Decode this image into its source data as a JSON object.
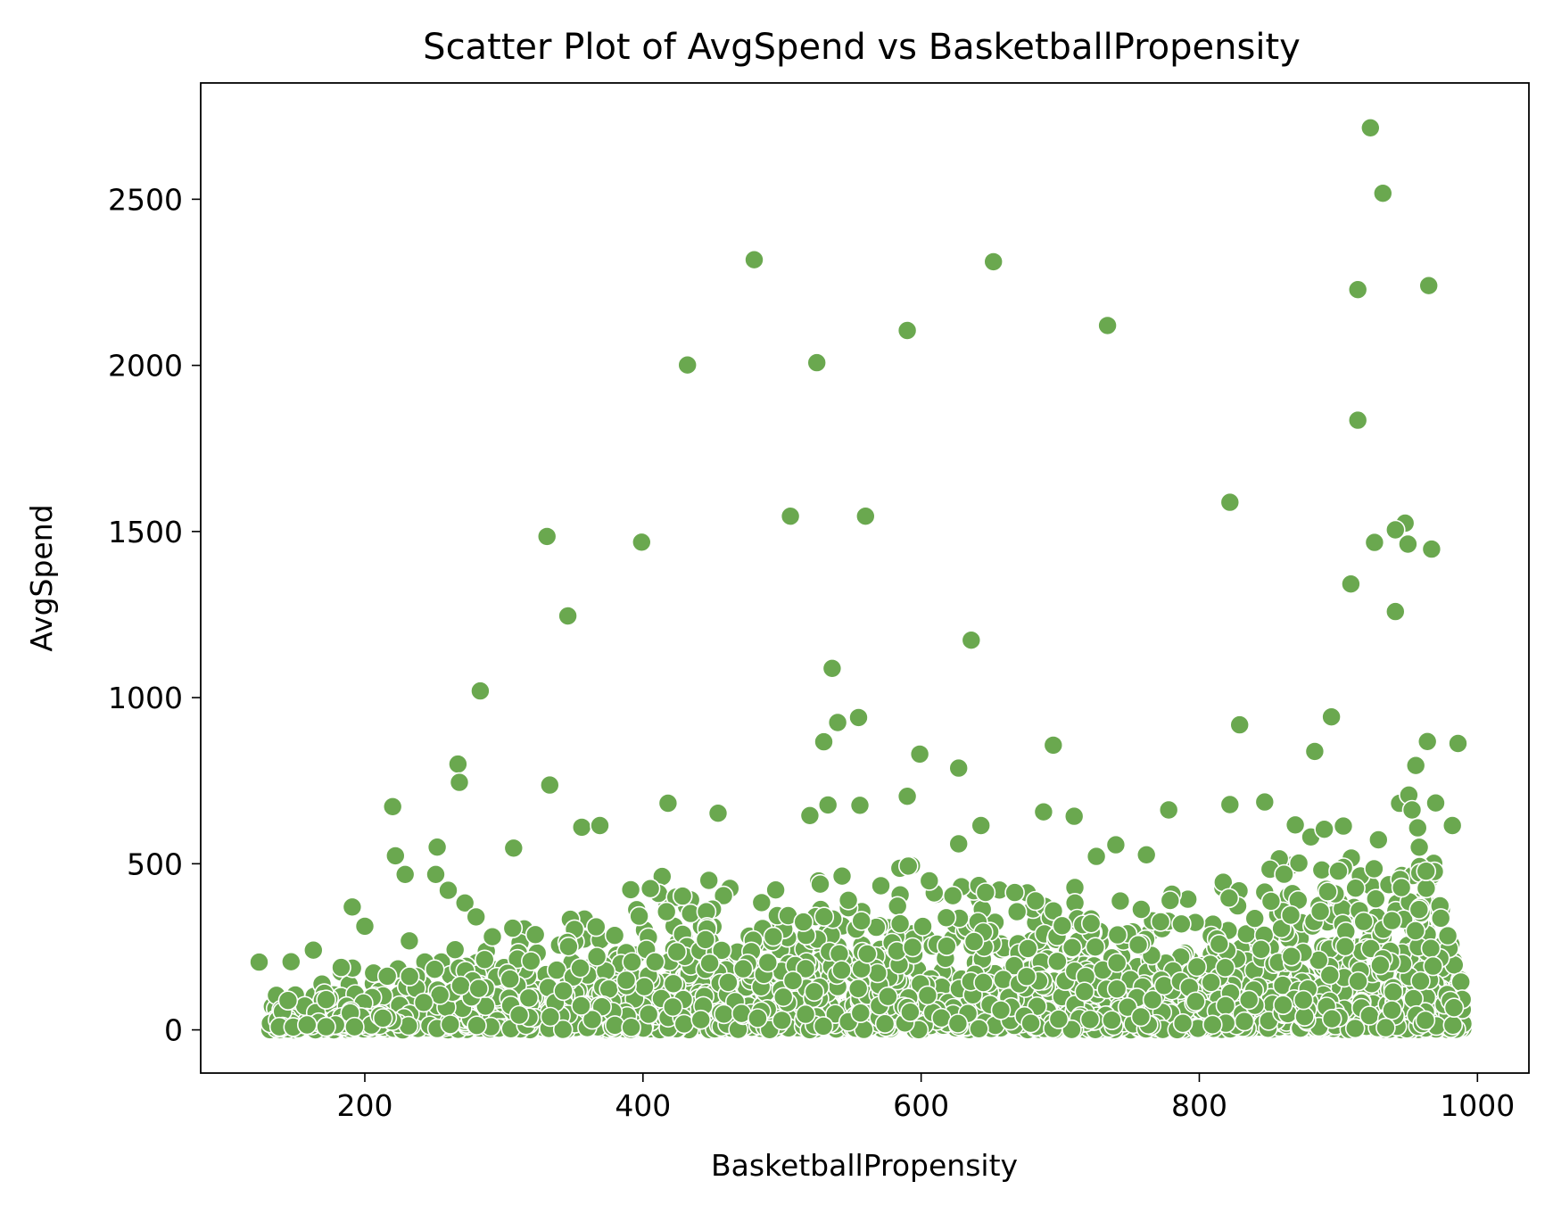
{
  "chart_data": {
    "type": "scatter",
    "title": "Scatter Plot of AvgSpend vs BasketballPropensity",
    "xlabel": "BasketballPropensity",
    "ylabel": "AvgSpend",
    "xlim": [
      82,
      1037
    ],
    "ylim": [
      -130,
      2850
    ],
    "x_ticks": [
      200,
      400,
      600,
      800,
      1000
    ],
    "y_ticks": [
      0,
      500,
      1000,
      1500,
      2000,
      2500
    ],
    "grid": false,
    "legend": "none",
    "point_color": "#6aa84f",
    "point_edge_color": "#ffffff",
    "outliers": [
      [
        923,
        2715
      ],
      [
        932,
        2518
      ],
      [
        480,
        2318
      ],
      [
        652,
        2312
      ],
      [
        965,
        2240
      ],
      [
        914,
        2228
      ],
      [
        734,
        2120
      ],
      [
        590,
        2105
      ],
      [
        432,
        2001
      ],
      [
        525,
        2008
      ],
      [
        914,
        1835
      ],
      [
        822,
        1588
      ],
      [
        506,
        1546
      ],
      [
        560,
        1546
      ],
      [
        948,
        1525
      ],
      [
        941,
        1505
      ],
      [
        926,
        1467
      ],
      [
        331,
        1485
      ],
      [
        399,
        1468
      ],
      [
        950,
        1462
      ],
      [
        967,
        1447
      ],
      [
        909,
        1342
      ],
      [
        346,
        1246
      ],
      [
        941,
        1259
      ],
      [
        636,
        1173
      ],
      [
        536,
        1088
      ],
      [
        283,
        1020
      ],
      [
        555,
        940
      ],
      [
        895,
        942
      ],
      [
        540,
        925
      ],
      [
        829,
        918
      ],
      [
        530,
        867
      ],
      [
        986,
        862
      ],
      [
        964,
        868
      ],
      [
        695,
        857
      ],
      [
        599,
        830
      ],
      [
        883,
        838
      ],
      [
        267,
        800
      ],
      [
        627,
        788
      ],
      [
        268,
        745
      ],
      [
        333,
        737
      ],
      [
        590,
        703
      ],
      [
        220,
        672
      ],
      [
        418,
        682
      ],
      [
        533,
        677
      ],
      [
        556,
        676
      ],
      [
        778,
        662
      ],
      [
        970,
        683
      ],
      [
        847,
        686
      ],
      [
        822,
        678
      ],
      [
        454,
        652
      ],
      [
        520,
        645
      ],
      [
        710,
        643
      ],
      [
        688,
        656
      ],
      [
        356,
        610
      ],
      [
        369,
        615
      ],
      [
        643,
        615
      ],
      [
        982,
        615
      ],
      [
        869,
        617
      ],
      [
        957,
        608
      ],
      [
        252,
        550
      ],
      [
        307,
        547
      ],
      [
        222,
        524
      ],
      [
        627,
        560
      ],
      [
        740,
        557
      ],
      [
        762,
        527
      ],
      [
        726,
        522
      ],
      [
        229,
        468
      ],
      [
        251,
        468
      ],
      [
        232,
        268
      ],
      [
        124,
        204
      ],
      [
        191,
        370
      ],
      [
        200,
        312
      ],
      [
        147,
        205
      ],
      [
        163,
        240
      ],
      [
        183,
        188
      ],
      [
        260,
        420
      ],
      [
        272,
        382
      ],
      [
        280,
        340
      ]
    ],
    "dense_region": {
      "description": "dense cloud of points between x 130 and 990 with y mostly 0 to 500, upper edge rising toward 850 near x 940",
      "envelope": [
        [
          130,
          120
        ],
        [
          200,
          200
        ],
        [
          300,
          320
        ],
        [
          400,
          470
        ],
        [
          500,
          520
        ],
        [
          600,
          500
        ],
        [
          700,
          480
        ],
        [
          800,
          470
        ],
        [
          850,
          500
        ],
        [
          900,
          640
        ],
        [
          940,
          800
        ],
        [
          960,
          850
        ],
        [
          990,
          250
        ]
      ],
      "count": 3000
    }
  }
}
